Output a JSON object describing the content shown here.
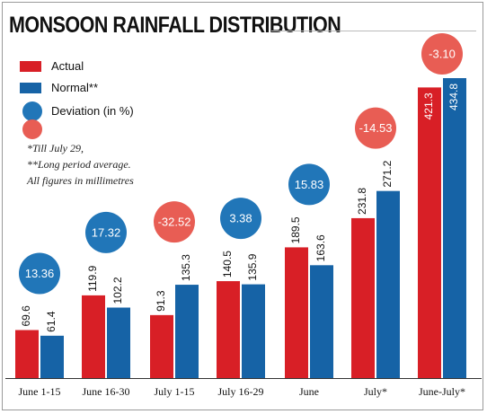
{
  "title": "MONSOON RAINFALL DISTRIBUTION",
  "colors": {
    "actual": "#d81f26",
    "normal": "#1663a6",
    "deviation_positive": "#2176b8",
    "deviation_negative": "#e85d54"
  },
  "legend": {
    "actual": "Actual",
    "normal": "Normal**",
    "deviation": "Deviation (in %)"
  },
  "notes": [
    "*Till July 29,",
    "**Long period average.",
    "All figures in millimetres"
  ],
  "chart_data": {
    "type": "bar",
    "title": "MONSOON RAINFALL DISTRIBUTION",
    "categories": [
      "June 1-15",
      "June 16-30",
      "July 1-15",
      "July 16-29",
      "June",
      "July*",
      "June-July*"
    ],
    "series": [
      {
        "name": "Actual",
        "values": [
          69.6,
          119.9,
          91.3,
          140.5,
          189.5,
          231.8,
          421.3
        ],
        "labels": [
          "69.6",
          "119.9",
          "91.3",
          "140.5",
          "189.5",
          "231.8",
          "421.3"
        ]
      },
      {
        "name": "Normal**",
        "values": [
          61.4,
          102.2,
          135.3,
          135.9,
          163.6,
          271.2,
          434.8
        ],
        "labels": [
          "61.4",
          "102.2",
          "135.3",
          "135.9",
          "163.6",
          "271.2",
          "434.8"
        ]
      }
    ],
    "deviation": {
      "name": "Deviation (in %)",
      "values": [
        13.36,
        17.32,
        -32.52,
        3.38,
        15.83,
        -14.53,
        -3.1
      ],
      "labels": [
        "13.36",
        "17.32",
        "-32.52",
        "3.38",
        "15.83",
        "-14.53",
        "-3.10"
      ]
    },
    "ylim": [
      0,
      434.8
    ],
    "grid": false,
    "legend_position": "top-left"
  }
}
